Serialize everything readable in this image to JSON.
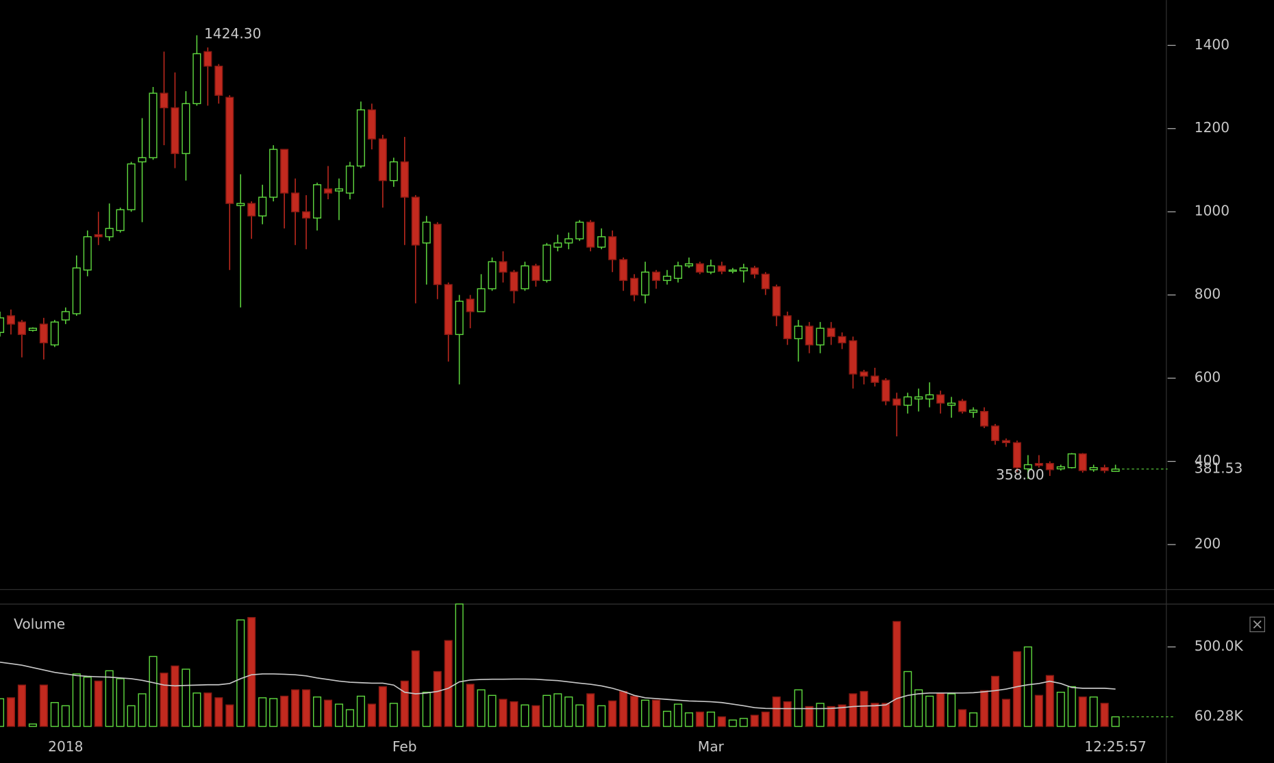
{
  "chart_data": {
    "type": "candlestick",
    "categories": [
      null,
      null,
      null,
      null,
      null,
      null,
      "2018",
      null,
      null,
      null,
      null,
      null,
      null,
      null,
      null,
      null,
      null,
      null,
      null,
      null,
      null,
      null,
      null,
      null,
      null,
      null,
      null,
      null,
      null,
      null,
      null,
      null,
      null,
      null,
      null,
      null,
      null,
      "Feb",
      null,
      null,
      null,
      null,
      null,
      null,
      null,
      null,
      null,
      null,
      null,
      null,
      null,
      null,
      null,
      null,
      null,
      null,
      null,
      null,
      null,
      null,
      null,
      null,
      null,
      null,
      null,
      "Mar",
      null,
      null,
      null,
      null,
      null,
      null,
      null,
      null,
      null,
      null,
      null,
      null,
      null,
      null,
      null,
      null,
      null,
      null,
      null,
      null,
      null,
      null,
      null,
      null,
      null,
      null,
      null,
      null,
      null,
      null,
      null,
      null,
      null,
      null,
      null,
      null,
      null
    ],
    "open": [
      710,
      750,
      735,
      715,
      730,
      680,
      740,
      755,
      860,
      945,
      940,
      955,
      1005,
      1120,
      1130,
      1285,
      1250,
      1140,
      1260,
      1385,
      1350,
      1275,
      1015,
      1020,
      990,
      1035,
      1150,
      1045,
      1000,
      985,
      1055,
      1050,
      1045,
      1110,
      1245,
      1175,
      1075,
      1120,
      1035,
      925,
      970,
      825,
      705,
      790,
      760,
      815,
      880,
      855,
      815,
      870,
      835,
      915,
      925,
      935,
      975,
      915,
      940,
      885,
      840,
      800,
      855,
      835,
      840,
      870,
      875,
      855,
      870,
      857,
      858,
      865,
      850,
      820,
      750,
      695,
      725,
      680,
      720,
      700,
      690,
      615,
      605,
      595,
      550,
      535,
      550,
      550,
      560,
      535,
      545,
      518,
      520,
      485,
      450,
      445,
      382,
      395,
      395,
      382,
      385,
      418,
      380,
      385,
      376
    ],
    "high": [
      760,
      765,
      740,
      722,
      745,
      740,
      770,
      895,
      955,
      1000,
      1020,
      1010,
      1120,
      1225,
      1300,
      1385,
      1335,
      1290,
      1424.3,
      1395,
      1355,
      1280,
      1090,
      1025,
      1065,
      1160,
      1150,
      1080,
      1040,
      1070,
      1110,
      1080,
      1120,
      1265,
      1260,
      1185,
      1130,
      1180,
      1040,
      990,
      975,
      830,
      800,
      800,
      850,
      890,
      905,
      860,
      880,
      875,
      925,
      945,
      950,
      980,
      980,
      960,
      955,
      890,
      850,
      880,
      860,
      860,
      880,
      890,
      880,
      885,
      880,
      865,
      875,
      870,
      855,
      825,
      760,
      740,
      735,
      735,
      735,
      710,
      700,
      620,
      625,
      600,
      565,
      565,
      575,
      590,
      570,
      555,
      550,
      530,
      530,
      490,
      455,
      450,
      415,
      415,
      400,
      392,
      420,
      420,
      392,
      392,
      392
    ],
    "low": [
      700,
      705,
      650,
      712,
      645,
      675,
      730,
      750,
      845,
      920,
      930,
      950,
      1000,
      975,
      1125,
      1160,
      1105,
      1075,
      1255,
      1255,
      1260,
      860,
      770,
      935,
      970,
      1025,
      960,
      920,
      910,
      955,
      1030,
      980,
      1030,
      1105,
      1150,
      1010,
      1060,
      920,
      780,
      825,
      790,
      640,
      585,
      720,
      760,
      810,
      830,
      780,
      810,
      820,
      830,
      905,
      910,
      930,
      905,
      910,
      855,
      810,
      785,
      780,
      815,
      825,
      830,
      865,
      850,
      850,
      850,
      852,
      830,
      840,
      800,
      725,
      680,
      640,
      660,
      660,
      680,
      670,
      575,
      585,
      580,
      535,
      460,
      515,
      520,
      530,
      515,
      505,
      515,
      505,
      480,
      440,
      435,
      375,
      358,
      385,
      365,
      378,
      383,
      373,
      375,
      372,
      375
    ],
    "close": [
      745,
      730,
      705,
      720,
      685,
      735,
      760,
      865,
      940,
      940,
      960,
      1005,
      1115,
      1130,
      1285,
      1250,
      1140,
      1260,
      1380,
      1350,
      1280,
      1020,
      1020,
      990,
      1035,
      1150,
      1045,
      1000,
      985,
      1065,
      1045,
      1055,
      1110,
      1245,
      1175,
      1075,
      1120,
      1035,
      920,
      975,
      825,
      705,
      785,
      760,
      815,
      880,
      855,
      810,
      870,
      835,
      920,
      925,
      935,
      975,
      915,
      940,
      885,
      835,
      800,
      855,
      835,
      845,
      870,
      875,
      855,
      870,
      857,
      860,
      865,
      850,
      815,
      750,
      695,
      725,
      680,
      720,
      700,
      685,
      610,
      605,
      590,
      545,
      535,
      555,
      555,
      560,
      540,
      540,
      520,
      523,
      485,
      450,
      445,
      385,
      392,
      390,
      380,
      387,
      418,
      378,
      385,
      378,
      381.53
    ],
    "volume": [
      174000,
      180000,
      260000,
      15000,
      260000,
      150000,
      130000,
      330000,
      310000,
      285000,
      350000,
      300000,
      130000,
      205000,
      440000,
      335000,
      380000,
      360000,
      210000,
      210000,
      180000,
      135000,
      670000,
      685000,
      180000,
      175000,
      190000,
      230000,
      230000,
      185000,
      165000,
      140000,
      105000,
      190000,
      140000,
      250000,
      145000,
      285000,
      475000,
      215000,
      345000,
      540000,
      770000,
      265000,
      230000,
      195000,
      170000,
      155000,
      135000,
      130000,
      195000,
      205000,
      185000,
      135000,
      205000,
      130000,
      160000,
      220000,
      190000,
      165000,
      165000,
      95000,
      140000,
      85000,
      90000,
      90000,
      60000,
      40000,
      50000,
      70000,
      90000,
      185000,
      155000,
      230000,
      125000,
      145000,
      125000,
      135000,
      205000,
      220000,
      145000,
      145000,
      660000,
      345000,
      230000,
      190000,
      210000,
      205000,
      105000,
      85000,
      225000,
      315000,
      170000,
      470000,
      500000,
      195000,
      320000,
      215000,
      250000,
      185000,
      185000,
      145000,
      60280
    ],
    "volume_ma": [
      404000,
      395000,
      385000,
      370000,
      355000,
      340000,
      330000,
      320000,
      315000,
      312000,
      310000,
      305000,
      300000,
      290000,
      275000,
      260000,
      255000,
      258000,
      260000,
      262000,
      262000,
      270000,
      300000,
      325000,
      330000,
      330000,
      328000,
      325000,
      318000,
      305000,
      295000,
      285000,
      278000,
      275000,
      272000,
      272000,
      260000,
      215000,
      205000,
      210000,
      220000,
      240000,
      280000,
      292000,
      295000,
      297000,
      297000,
      298000,
      298000,
      297000,
      292000,
      288000,
      280000,
      272000,
      265000,
      255000,
      240000,
      220000,
      195000,
      180000,
      175000,
      170000,
      165000,
      160000,
      158000,
      155000,
      150000,
      140000,
      130000,
      118000,
      113000,
      112000,
      112000,
      112000,
      112000,
      112000,
      113000,
      118000,
      125000,
      128000,
      130000,
      135000,
      175000,
      195000,
      205000,
      210000,
      210000,
      210000,
      210000,
      212000,
      218000,
      225000,
      235000,
      250000,
      262000,
      270000,
      284000,
      270000,
      245000,
      240000,
      240000,
      240000,
      235000
    ],
    "ylim": [
      93,
      1509
    ],
    "yticks": [
      200,
      400,
      600,
      800,
      1000,
      1200,
      1400
    ],
    "volume_ylim": [
      0,
      772000
    ],
    "volume_yticks": [
      {
        "value": 500000,
        "label": "500.0K"
      }
    ],
    "volume_label": "Volume",
    "max_label": {
      "value": 1424.3,
      "label": "1424.30"
    },
    "min_label": {
      "value": 358,
      "label": "358.00"
    },
    "last_price": 381.53,
    "last_volume": {
      "value": 60280,
      "label": "60.28K"
    },
    "time_label": "12:25:57",
    "up_color": "#5fd83f",
    "down_color": "#c22a1f",
    "ma_color": "#c8c8c8"
  }
}
